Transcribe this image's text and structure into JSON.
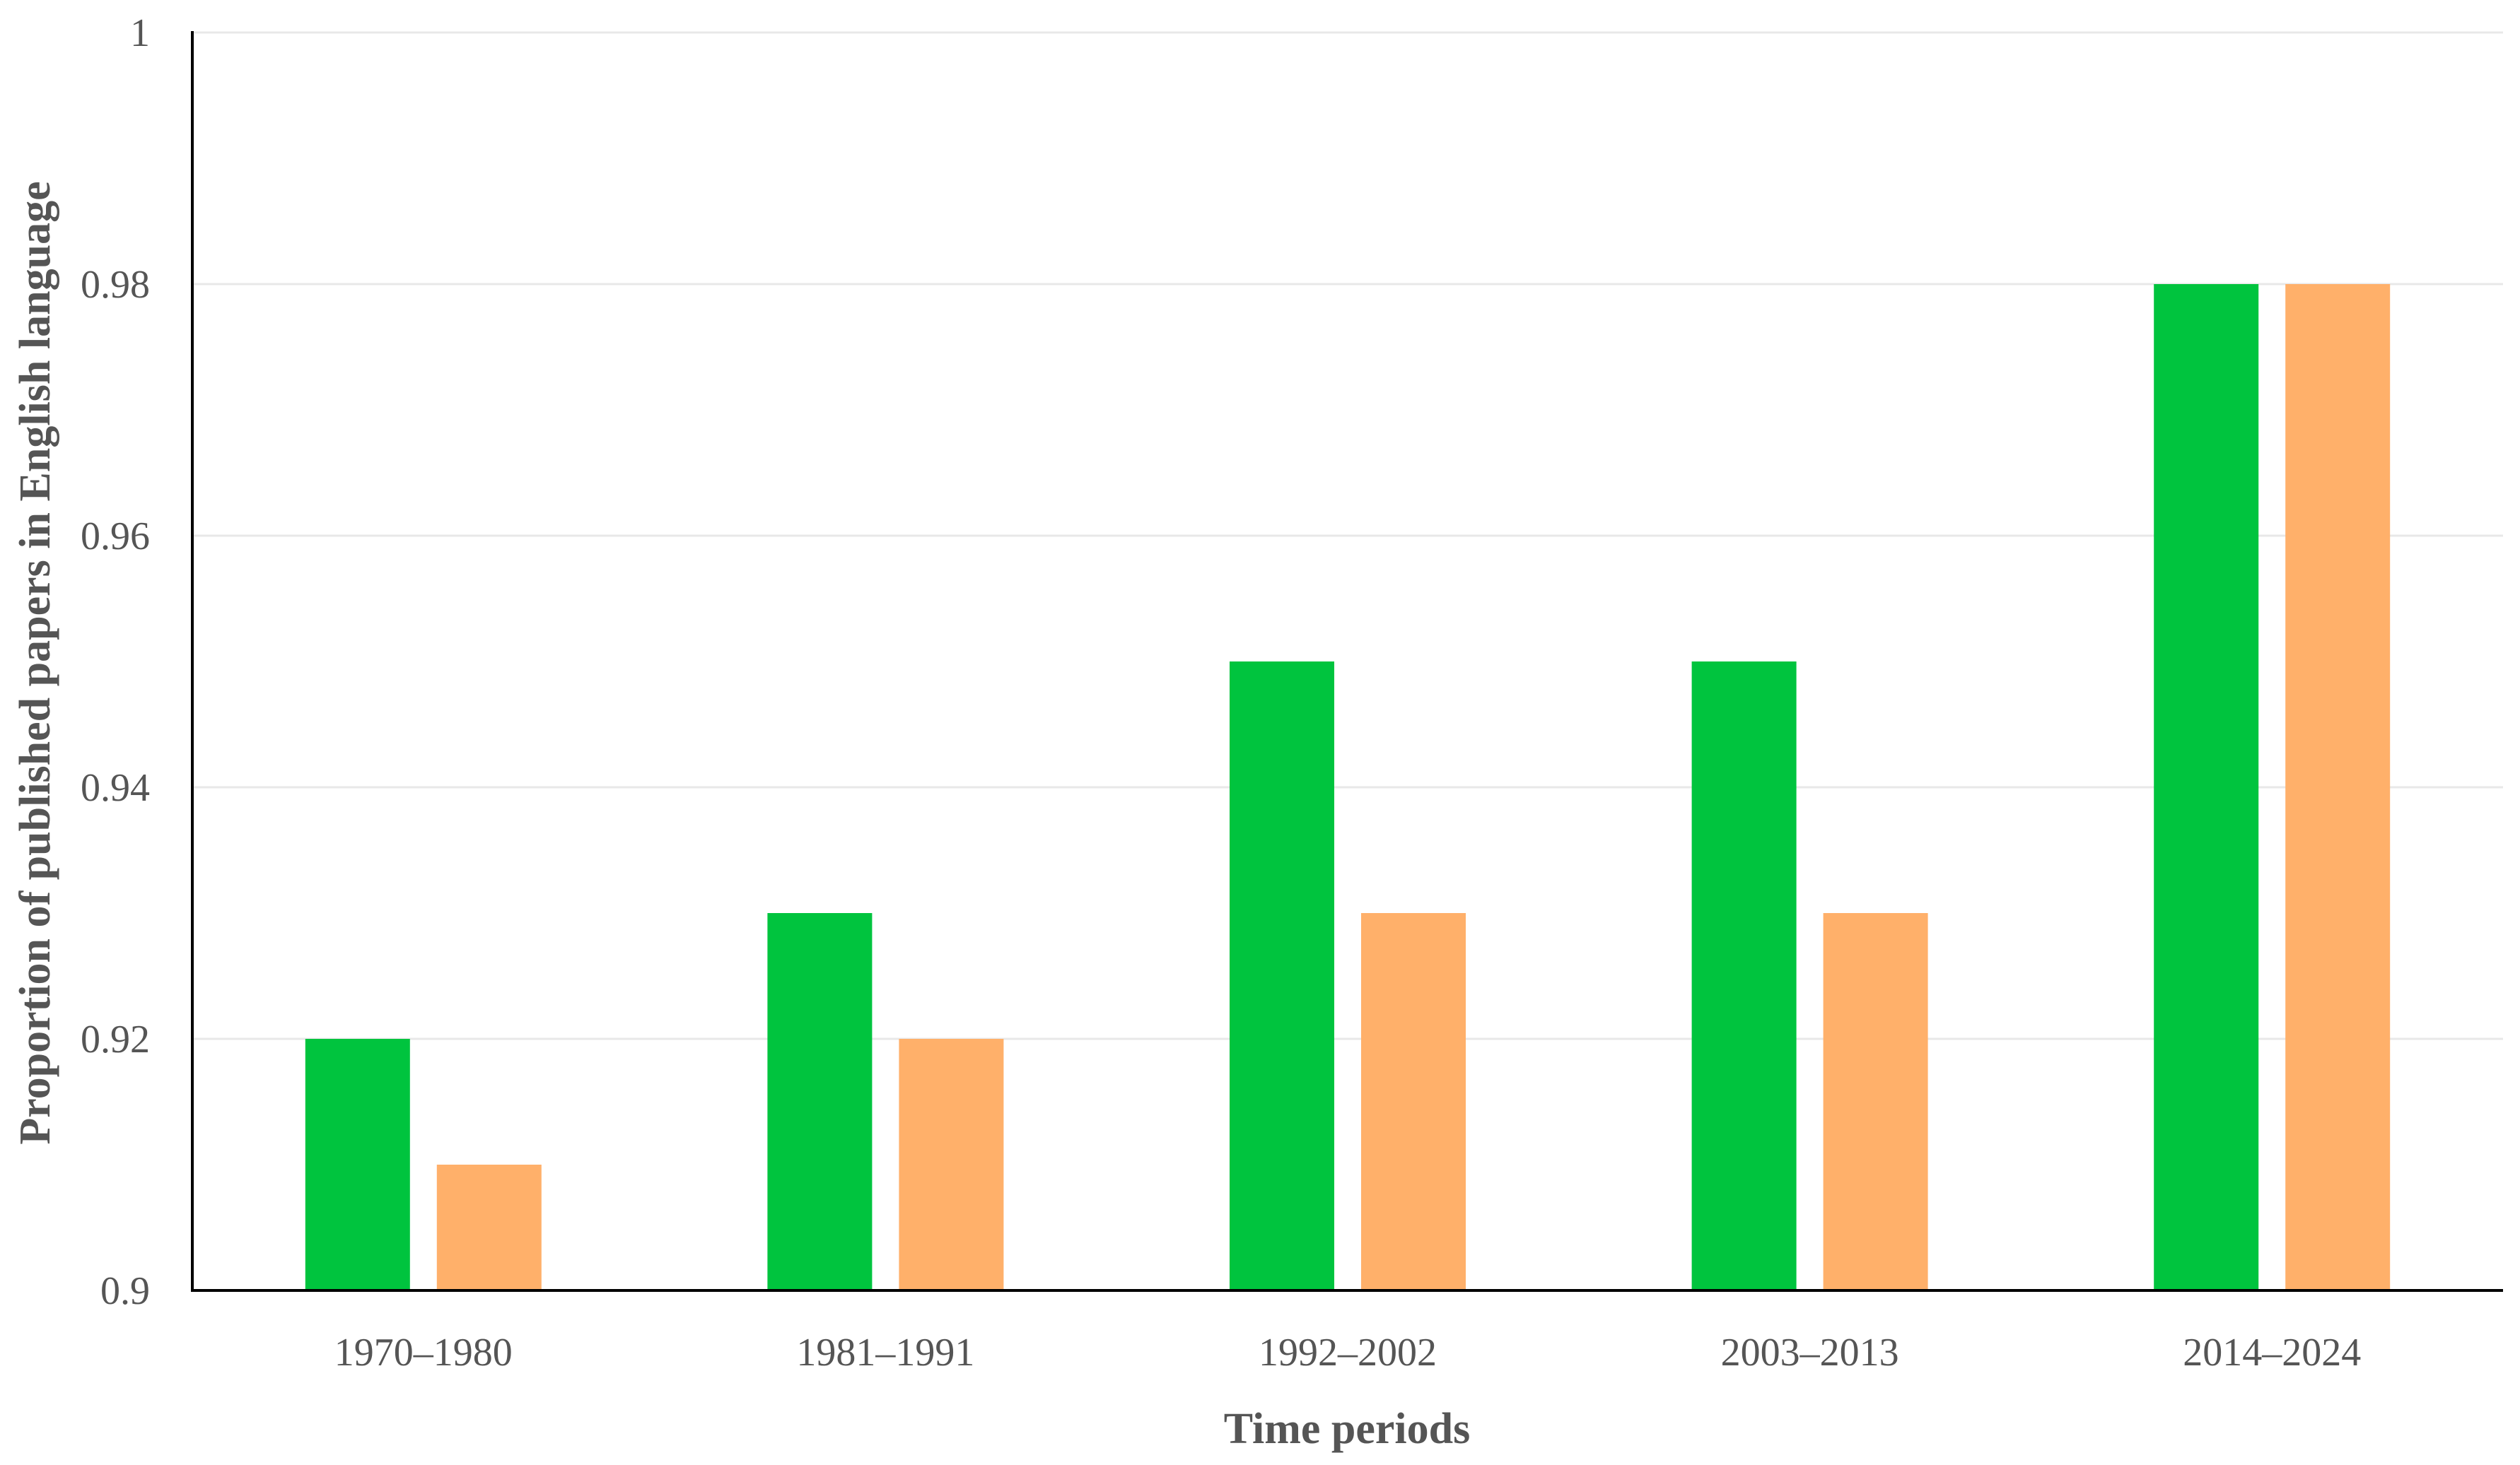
{
  "chart_data": {
    "type": "bar",
    "title": "",
    "xlabel": "Time periods",
    "ylabel": "Proportion of published papers in English language",
    "categories": [
      "1970–1980",
      "1981–1991",
      "1992–2002",
      "2003–2013",
      "2014–2024"
    ],
    "series": [
      {
        "color": "#00c43e",
        "values": [
          0.92,
          0.93,
          0.95,
          0.95,
          0.98
        ]
      },
      {
        "color": "#ffb06a",
        "values": [
          0.91,
          0.92,
          0.93,
          0.93,
          0.98
        ]
      }
    ],
    "ylim": [
      0.9,
      1
    ],
    "yticks": [
      0.9,
      0.92,
      0.94,
      0.96,
      0.98,
      1
    ],
    "ytick_labels": [
      "0.9",
      "0.92",
      "0.94",
      "0.96",
      "0.98",
      "1"
    ],
    "grid": true,
    "legend": "none"
  },
  "colors": {
    "axis": "#000000",
    "gridline": "#e8e8e8",
    "text": "#555555"
  }
}
